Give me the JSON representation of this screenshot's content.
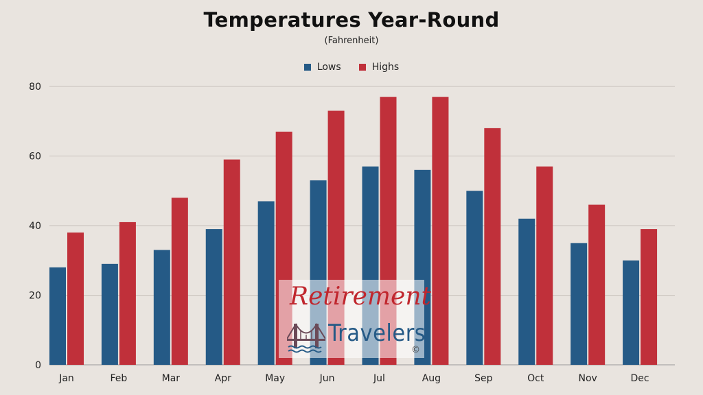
{
  "chart_data": {
    "type": "bar",
    "title": "Temperatures Year-Round",
    "subtitle": "(Fahrenheit)",
    "categories": [
      "Jan",
      "Feb",
      "Mar",
      "Apr",
      "May",
      "Jun",
      "Jul",
      "Aug",
      "Sep",
      "Oct",
      "Nov",
      "Dec"
    ],
    "series": [
      {
        "name": "Lows",
        "color": "#255a86",
        "values": [
          28,
          29,
          33,
          39,
          47,
          53,
          57,
          56,
          50,
          42,
          35,
          30
        ]
      },
      {
        "name": "Highs",
        "color": "#c0303a",
        "values": [
          38,
          41,
          48,
          59,
          67,
          73,
          77,
          77,
          68,
          57,
          46,
          39
        ]
      }
    ],
    "ylim": [
      0,
      80
    ],
    "yticks": [
      0,
      20,
      40,
      60,
      80
    ],
    "grid": true,
    "legend": "top-center",
    "xlabel": "",
    "ylabel": ""
  },
  "watermark": {
    "line1": "Retirement",
    "line2": "Travelers",
    "copyright": "©"
  }
}
